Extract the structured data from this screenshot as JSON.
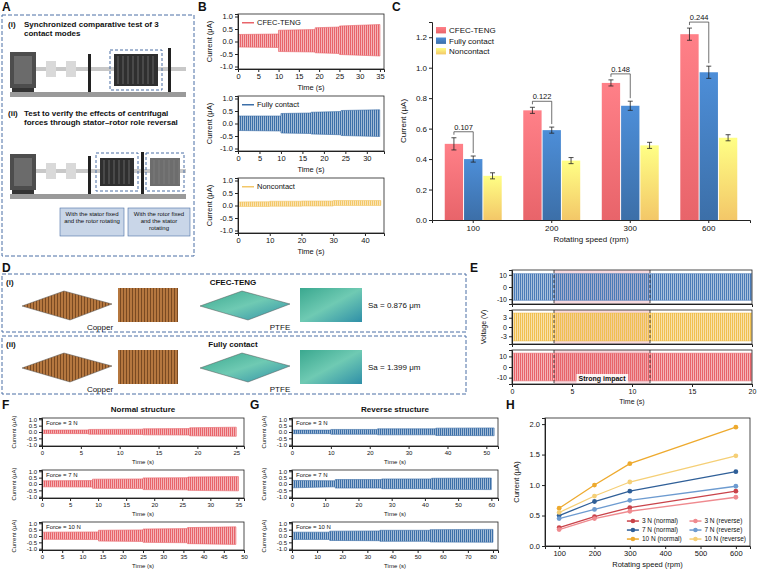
{
  "panel_letters": [
    "A",
    "B",
    "C",
    "D",
    "E",
    "F",
    "G",
    "H"
  ],
  "diagram": {
    "items": [
      {
        "tag": "(i)",
        "text": "Synchronized comparative test of 3 contact modes"
      },
      {
        "tag": "(ii)",
        "text": "Test to verify the effects of centrifugal forces through stator–rotor role reversal",
        "notes": [
          "With the stator fixed and the rotor rotating",
          "With the rotor fixed and the stator rotating"
        ]
      }
    ]
  },
  "images": {
    "rows": [
      {
        "tag": "(i)",
        "title": "CFEC-TENG",
        "captions": [
          "Copper",
          "PTFE"
        ],
        "roughness": "Sa = 0.876 μm"
      },
      {
        "tag": "(ii)",
        "title": "Fully contact",
        "captions": [
          "Copper",
          "PTFE"
        ],
        "roughness": "Sa = 1.399 μm"
      }
    ]
  },
  "group_titles": [
    "Normal structure",
    "Reverse structure"
  ],
  "chart_data": [
    {
      "type": "area",
      "x": [
        0,
        10,
        10,
        19,
        19,
        25,
        25,
        35
      ],
      "series": [
        {
          "name": "CFEC-TENG",
          "color": "#e8646a",
          "values": [
            0.28,
            0.3,
            0.45,
            0.48,
            0.55,
            0.58,
            0.62,
            0.68
          ],
          "lower": [
            -0.22,
            -0.24,
            -0.4,
            -0.42,
            -0.45,
            -0.48,
            -0.52,
            -0.58
          ]
        }
      ],
      "xlim": [
        0,
        36
      ],
      "xticks": [
        0,
        5,
        10,
        15,
        20,
        25,
        30,
        35
      ],
      "ylim": [
        -1.1,
        1.1
      ],
      "yticks": [
        {
          "value": -1,
          "label": "-1.0"
        },
        {
          "value": -0.5,
          "label": "-0.5"
        },
        {
          "value": 0,
          "label": "0.0"
        },
        {
          "value": 0.5,
          "label": "0.5"
        },
        {
          "value": 1,
          "label": "1.0"
        }
      ],
      "x_label": "Time (s)",
      "y_label": "Current (μA)",
      "legend": "upper left"
    },
    {
      "type": "area",
      "x": [
        0,
        10,
        10,
        17,
        17,
        24,
        24,
        33
      ],
      "series": [
        {
          "name": "Fully contact",
          "color": "#3c6fa8",
          "values": [
            0.3,
            0.3,
            0.4,
            0.42,
            0.45,
            0.48,
            0.52,
            0.55
          ],
          "lower": [
            -0.28,
            -0.3,
            -0.38,
            -0.4,
            -0.42,
            -0.45,
            -0.48,
            -0.52
          ]
        }
      ],
      "xlim": [
        0,
        34
      ],
      "xticks": [
        0,
        5,
        10,
        15,
        20,
        25,
        30
      ],
      "ylim": [
        -1.1,
        1.1
      ],
      "yticks": [
        {
          "value": -1,
          "label": "-1.0"
        },
        {
          "value": -0.5,
          "label": "-0.5"
        },
        {
          "value": 0,
          "label": "0.0"
        },
        {
          "value": 0.5,
          "label": "0.5"
        },
        {
          "value": 1,
          "label": "1.0"
        }
      ],
      "x_label": "Time (s)",
      "y_label": "Current (μA)",
      "legend": "upper left"
    },
    {
      "type": "area",
      "x": [
        0,
        10,
        10,
        20,
        20,
        30,
        30,
        45
      ],
      "series": [
        {
          "name": "Noncontact",
          "color": "#f3c768",
          "values": [
            0.14,
            0.15,
            0.17,
            0.17,
            0.18,
            0.18,
            0.2,
            0.2
          ],
          "lower": [
            -0.04,
            -0.04,
            -0.03,
            -0.03,
            -0.02,
            -0.02,
            0,
            0
          ]
        }
      ],
      "xlim": [
        0,
        46
      ],
      "xticks": [
        0,
        10,
        20,
        30,
        40
      ],
      "ylim": [
        -1.1,
        1.1
      ],
      "yticks": [
        {
          "value": -1,
          "label": "-1.0"
        },
        {
          "value": -0.5,
          "label": "-0.5"
        },
        {
          "value": 0,
          "label": "0.0"
        },
        {
          "value": 0.5,
          "label": "0.5"
        },
        {
          "value": 1,
          "label": "1.0"
        }
      ],
      "x_label": "Time (s)",
      "y_label": "Current (μA)",
      "legend": "upper left"
    },
    {
      "type": "bar",
      "categories": [
        "100",
        "200",
        "300",
        "600"
      ],
      "series": [
        {
          "name": "CFEC-TENG",
          "color": "#e8646a",
          "values": [
            0.5,
            0.72,
            0.9,
            1.22
          ],
          "errors": [
            0.04,
            0.02,
            0.02,
            0.04
          ]
        },
        {
          "name": "Fully contact",
          "color": "#3c6fa8",
          "values": [
            0.4,
            0.59,
            0.75,
            0.97
          ],
          "errors": [
            0.02,
            0.02,
            0.03,
            0.04
          ]
        },
        {
          "name": "Noncontact",
          "color": "#f3c768",
          "values": [
            0.29,
            0.39,
            0.49,
            0.54
          ],
          "errors": [
            0.02,
            0.02,
            0.02,
            0.02
          ]
        }
      ],
      "differences": [
        0.107,
        0.122,
        0.148,
        0.244
      ],
      "ylim": [
        0,
        1.3
      ],
      "yticks": [
        {
          "value": 0,
          "label": "0.0"
        },
        {
          "value": 0.2,
          "label": "0.2"
        },
        {
          "value": 0.4,
          "label": "0.4"
        },
        {
          "value": 0.6,
          "label": "0.6"
        },
        {
          "value": 0.8,
          "label": "0.8"
        },
        {
          "value": 1,
          "label": "1.0"
        },
        {
          "value": 1.2,
          "label": "1.2"
        }
      ],
      "x_label": "Rotating speed (rpm)",
      "y_label": "Current (μA)",
      "legend": "upper left"
    },
    {
      "type": "area",
      "x": [
        0,
        20
      ],
      "series": [
        {
          "color": "#4a7bb7",
          "values": [
            11,
            11
          ],
          "lower": [
            -11,
            -11
          ]
        }
      ],
      "highlight": [
        3.5,
        11.5
      ],
      "xlim": [
        0,
        20
      ],
      "ylim": [
        -14,
        14
      ],
      "yticks": [
        -10,
        0,
        10
      ],
      "tick_labels": "y"
    },
    {
      "type": "area",
      "x": [
        0,
        20
      ],
      "series": [
        {
          "color": "#f0c050",
          "values": [
            4.5,
            4.5
          ],
          "lower": [
            -4.5,
            -4.5
          ]
        }
      ],
      "highlight": [
        3.5,
        11.5
      ],
      "xlim": [
        0,
        20
      ],
      "ylim": [
        -5.5,
        5.5
      ],
      "yticks": [
        -3,
        0,
        3
      ],
      "y_label": "Voltage (V)",
      "tick_labels": "y"
    },
    {
      "type": "area",
      "x": [
        0,
        20
      ],
      "series": [
        {
          "color": "#e8646a",
          "values": [
            13,
            13
          ],
          "lower": [
            -13,
            -13
          ]
        }
      ],
      "highlight": [
        3.5,
        11.5
      ],
      "annotation": "Strong impact",
      "xlim": [
        0,
        20
      ],
      "xticks": [
        0,
        5,
        10,
        15,
        20
      ],
      "ylim": [
        -16,
        16
      ],
      "yticks": [
        -10,
        0,
        10
      ],
      "x_label": "Time (s)"
    },
    {
      "type": "area",
      "title": "Force = 3 N",
      "x": [
        0,
        6,
        6,
        13,
        13,
        19,
        19,
        25
      ],
      "series": [
        {
          "color": "#e8646a",
          "values": [
            0.15,
            0.16,
            0.2,
            0.22,
            0.25,
            0.27,
            0.33,
            0.38
          ],
          "lower": [
            -0.12,
            -0.13,
            -0.17,
            -0.19,
            -0.22,
            -0.24,
            -0.3,
            -0.34
          ]
        }
      ],
      "xlim": [
        0,
        26
      ],
      "xticks": [
        0,
        5,
        10,
        15,
        20,
        25
      ],
      "ylim": [
        -1.1,
        1.1
      ],
      "yticks": [
        {
          "value": -1,
          "label": "-1.0"
        },
        {
          "value": -0.5,
          "label": "-0.5"
        },
        {
          "value": 0,
          "label": "0.0"
        },
        {
          "value": 0.5,
          "label": "0.5"
        },
        {
          "value": 1,
          "label": "1.0"
        }
      ],
      "x_label": "Time (s)",
      "y_label": "Current (μA)"
    },
    {
      "type": "area",
      "title": "Force = 7 N",
      "x": [
        0,
        9,
        9,
        18,
        18,
        26,
        26,
        35
      ],
      "series": [
        {
          "color": "#e8646a",
          "values": [
            0.25,
            0.27,
            0.38,
            0.4,
            0.48,
            0.5,
            0.55,
            0.58
          ],
          "lower": [
            -0.22,
            -0.24,
            -0.34,
            -0.36,
            -0.44,
            -0.46,
            -0.5,
            -0.54
          ]
        }
      ],
      "xlim": [
        0,
        36
      ],
      "xticks": [
        0,
        5,
        10,
        15,
        20,
        25,
        30,
        35
      ],
      "ylim": [
        -1.1,
        1.1
      ],
      "yticks": [
        {
          "value": -1,
          "label": "-1.0"
        },
        {
          "value": -0.5,
          "label": "-0.5"
        },
        {
          "value": 0,
          "label": "0.0"
        },
        {
          "value": 0.5,
          "label": "0.5"
        },
        {
          "value": 1,
          "label": "1.0"
        }
      ],
      "x_label": "Time (s)",
      "y_label": "Current (μA)"
    },
    {
      "type": "area",
      "title": "Force = 10 N",
      "x": [
        0,
        14,
        14,
        25,
        25,
        36,
        36,
        48
      ],
      "series": [
        {
          "color": "#e8646a",
          "values": [
            0.3,
            0.32,
            0.45,
            0.48,
            0.55,
            0.58,
            0.66,
            0.72
          ],
          "lower": [
            -0.26,
            -0.28,
            -0.4,
            -0.43,
            -0.5,
            -0.53,
            -0.6,
            -0.66
          ]
        }
      ],
      "xlim": [
        0,
        50
      ],
      "xticks": [
        0,
        5,
        10,
        15,
        20,
        25,
        30,
        35,
        40,
        45,
        50
      ],
      "ylim": [
        -1.1,
        1.1
      ],
      "yticks": [
        {
          "value": -1,
          "label": "-1.0"
        },
        {
          "value": -0.5,
          "label": "-0.5"
        },
        {
          "value": 0,
          "label": "0.0"
        },
        {
          "value": 0.5,
          "label": "0.5"
        },
        {
          "value": 1,
          "label": "1.0"
        }
      ],
      "x_label": "Time (s)",
      "y_label": "Current (μA)"
    },
    {
      "type": "area",
      "title": "Force = 3 N",
      "x": [
        0,
        10,
        10,
        22,
        22,
        37,
        37,
        52
      ],
      "series": [
        {
          "color": "#3c6fa8",
          "values": [
            0.15,
            0.15,
            0.2,
            0.2,
            0.25,
            0.25,
            0.3,
            0.32
          ],
          "lower": [
            -0.13,
            -0.13,
            -0.18,
            -0.18,
            -0.22,
            -0.22,
            -0.27,
            -0.29
          ]
        }
      ],
      "xlim": [
        0,
        53
      ],
      "xticks": [
        0,
        10,
        20,
        30,
        40,
        50
      ],
      "ylim": [
        -1.1,
        1.1
      ],
      "yticks": [
        {
          "value": -1,
          "label": "-1.0"
        },
        {
          "value": -0.5,
          "label": "-0.5"
        },
        {
          "value": 0,
          "label": "0.0"
        },
        {
          "value": 0.5,
          "label": "0.5"
        },
        {
          "value": 1,
          "label": "1.0"
        }
      ],
      "x_label": "Time (s)",
      "y_label": "Current (μA)"
    },
    {
      "type": "area",
      "title": "Force = 7 N",
      "x": [
        0,
        13,
        13,
        27,
        27,
        42,
        42,
        60
      ],
      "series": [
        {
          "color": "#3c6fa8",
          "values": [
            0.28,
            0.25,
            0.35,
            0.35,
            0.4,
            0.4,
            0.45,
            0.47
          ],
          "lower": [
            -0.3,
            -0.22,
            -0.32,
            -0.32,
            -0.37,
            -0.37,
            -0.42,
            -0.44
          ]
        }
      ],
      "xlim": [
        0,
        62
      ],
      "xticks": [
        0,
        10,
        20,
        30,
        40,
        50,
        60
      ],
      "ylim": [
        -1.1,
        1.1
      ],
      "yticks": [
        {
          "value": -1,
          "label": "-1.0"
        },
        {
          "value": -0.5,
          "label": "-0.5"
        },
        {
          "value": 0,
          "label": "0.0"
        },
        {
          "value": 0.5,
          "label": "0.5"
        },
        {
          "value": 1,
          "label": "1.0"
        }
      ],
      "x_label": "Time (s)",
      "y_label": "Current (μA)"
    },
    {
      "type": "area",
      "title": "Force = 10 N",
      "x": [
        0,
        15,
        15,
        35,
        35,
        55,
        55,
        80
      ],
      "series": [
        {
          "color": "#3c6fa8",
          "values": [
            0.3,
            0.3,
            0.38,
            0.4,
            0.45,
            0.45,
            0.5,
            0.52
          ],
          "lower": [
            -0.27,
            -0.27,
            -0.35,
            -0.37,
            -0.42,
            -0.42,
            -0.47,
            -0.49
          ]
        }
      ],
      "xlim": [
        0,
        82
      ],
      "xticks": [
        0,
        10,
        20,
        30,
        40,
        50,
        60,
        70,
        80
      ],
      "ylim": [
        -1.1,
        1.1
      ],
      "yticks": [
        {
          "value": -1,
          "label": "-1.0"
        },
        {
          "value": -0.5,
          "label": "-0.5"
        },
        {
          "value": 0,
          "label": "0.0"
        },
        {
          "value": 0.5,
          "label": "0.5"
        },
        {
          "value": 1,
          "label": "1.0"
        }
      ],
      "x_label": "Time (s)",
      "y_label": "Current (μA)"
    },
    {
      "type": "line",
      "x": [
        100,
        200,
        300,
        600
      ],
      "series": [
        {
          "name": "3 N (normal)",
          "color": "#c9434a",
          "marker": "circle",
          "values": [
            0.3,
            0.48,
            0.63,
            0.9
          ]
        },
        {
          "name": "3 N (reverse)",
          "color": "#ef8a8f",
          "marker": "circle",
          "values": [
            0.27,
            0.45,
            0.57,
            0.8
          ]
        },
        {
          "name": "7 N (normal)",
          "color": "#2f5f98",
          "marker": "circle",
          "values": [
            0.5,
            0.73,
            0.9,
            1.22
          ]
        },
        {
          "name": "7 N (reverse)",
          "color": "#6d9bd0",
          "marker": "circle",
          "values": [
            0.45,
            0.6,
            0.75,
            0.98
          ]
        },
        {
          "name": "10 N (normal)",
          "color": "#eeaa2e",
          "marker": "circle",
          "values": [
            0.62,
            1.0,
            1.35,
            1.95
          ]
        },
        {
          "name": "10 N (reverse)",
          "color": "#f5cf76",
          "marker": "circle",
          "values": [
            0.55,
            0.82,
            1.05,
            1.48
          ]
        }
      ],
      "xlim": [
        60,
        640
      ],
      "xticks": [
        100,
        200,
        300,
        400,
        500,
        600
      ],
      "ylim": [
        0,
        2.1
      ],
      "yticks": [
        {
          "value": 0,
          "label": "0.0"
        },
        {
          "value": 0.5,
          "label": "0.5"
        },
        {
          "value": 1,
          "label": "1.0"
        },
        {
          "value": 1.5,
          "label": "1.5"
        },
        {
          "value": 2,
          "label": "2.0"
        }
      ],
      "x_label": "Rotating speed (rpm)",
      "y_label": "Current (μA)",
      "legend": "lower right"
    }
  ]
}
